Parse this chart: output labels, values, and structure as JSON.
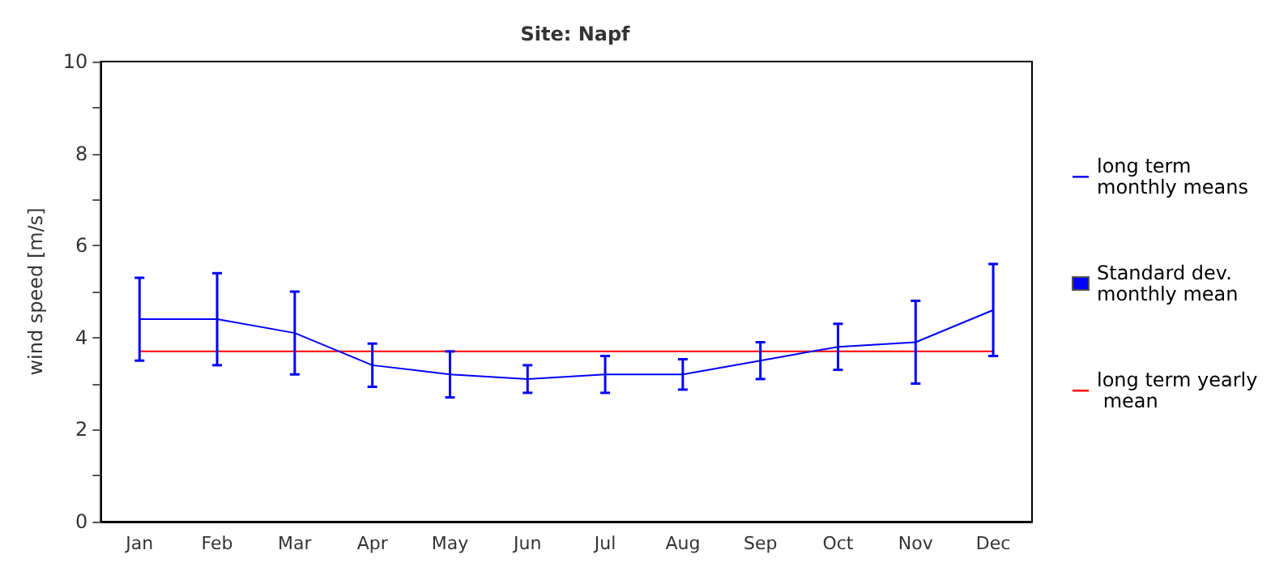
{
  "chart_data": {
    "type": "line",
    "title": "Site: Napf",
    "ylabel": "wind speed [m/s]",
    "categories": [
      "Jan",
      "Feb",
      "Mar",
      "Apr",
      "May",
      "Jun",
      "Jul",
      "Aug",
      "Sep",
      "Oct",
      "Nov",
      "Dec"
    ],
    "series": [
      {
        "name": "long term monthly means",
        "color": "#0000ff",
        "values": [
          4.4,
          4.4,
          4.1,
          3.4,
          3.2,
          3.1,
          3.2,
          3.2,
          3.5,
          3.8,
          3.9,
          4.6
        ],
        "errors": [
          0.9,
          1.0,
          0.9,
          0.47,
          0.5,
          0.3,
          0.4,
          0.33,
          0.4,
          0.5,
          0.9,
          1.0
        ]
      },
      {
        "name": "long term yearly mean",
        "color": "#ff0000",
        "values": [
          3.7,
          3.7,
          3.7,
          3.7,
          3.7,
          3.7,
          3.7,
          3.7,
          3.7,
          3.7,
          3.7,
          3.7
        ]
      }
    ],
    "annotations": [
      "Standard dev. monthly mean"
    ],
    "ylim": [
      0,
      10
    ],
    "yticks": [
      0,
      {
        "value": 1,
        "label": null
      },
      2,
      {
        "value": 3,
        "label": null
      },
      4,
      {
        "value": 5,
        "label": null
      },
      6,
      {
        "value": 7,
        "label": null
      },
      8,
      {
        "value": 9,
        "label": null
      },
      10
    ],
    "grid": false,
    "legend": "right",
    "marker": "none",
    "line_style": "solid"
  }
}
